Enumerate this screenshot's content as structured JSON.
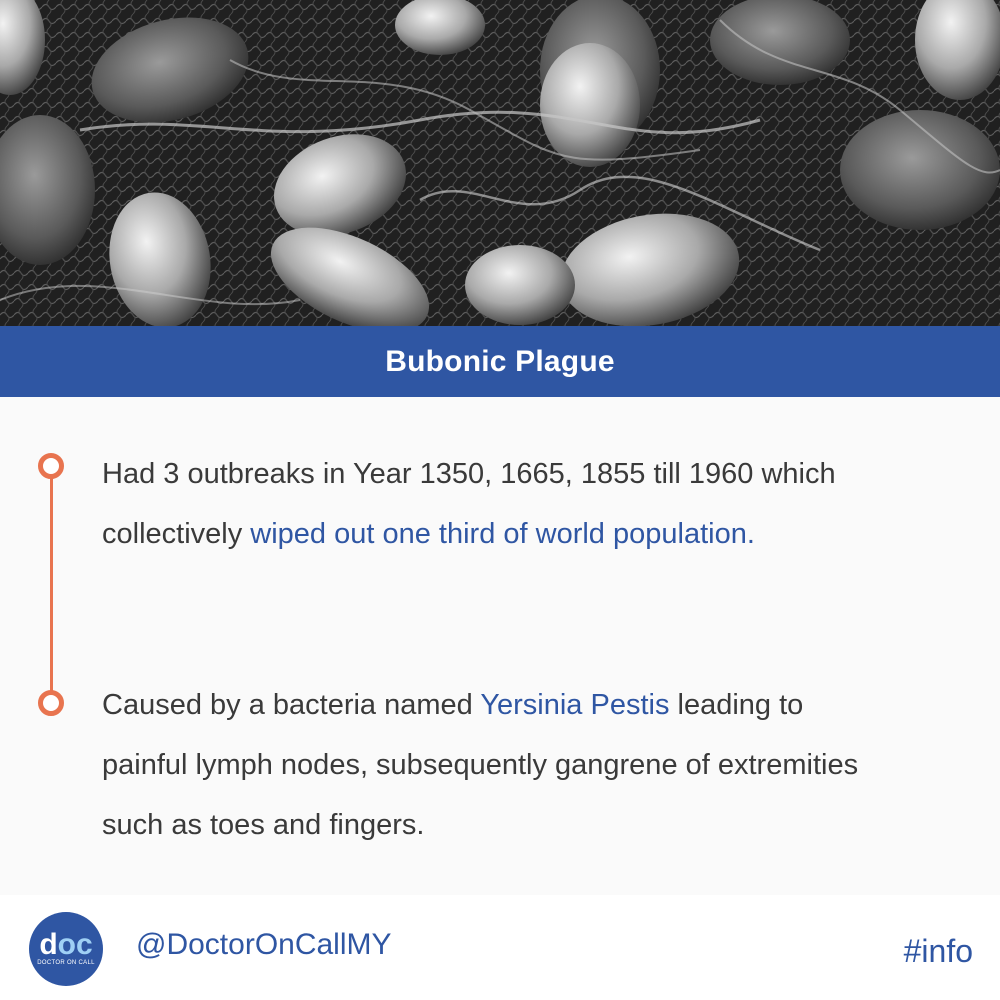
{
  "hero": {
    "description_icon": "bacteria-micrograph-image"
  },
  "title": "Bubonic Plague",
  "points": [
    {
      "text_before": "Had 3 outbreaks in Year 1350, 1665, 1855 till 1960 which collectively ",
      "highlight": "wiped out one third of world population.",
      "text_after": ""
    },
    {
      "text_before": "Caused by a bacteria named ",
      "highlight": "Yersinia Pestis",
      "text_after": " leading to painful lymph nodes, subsequently gangrene of extremities such as toes and fingers."
    }
  ],
  "footer": {
    "logo_mark_d": "d",
    "logo_mark_oc": "oc",
    "logo_sub": "DOCTOR ON CALL",
    "handle": "@DoctorOnCallMY",
    "tag": "#info"
  },
  "colors": {
    "accent_blue": "#2f56a3",
    "timeline_orange": "#e8744f",
    "body_text": "#3a3a3a"
  }
}
